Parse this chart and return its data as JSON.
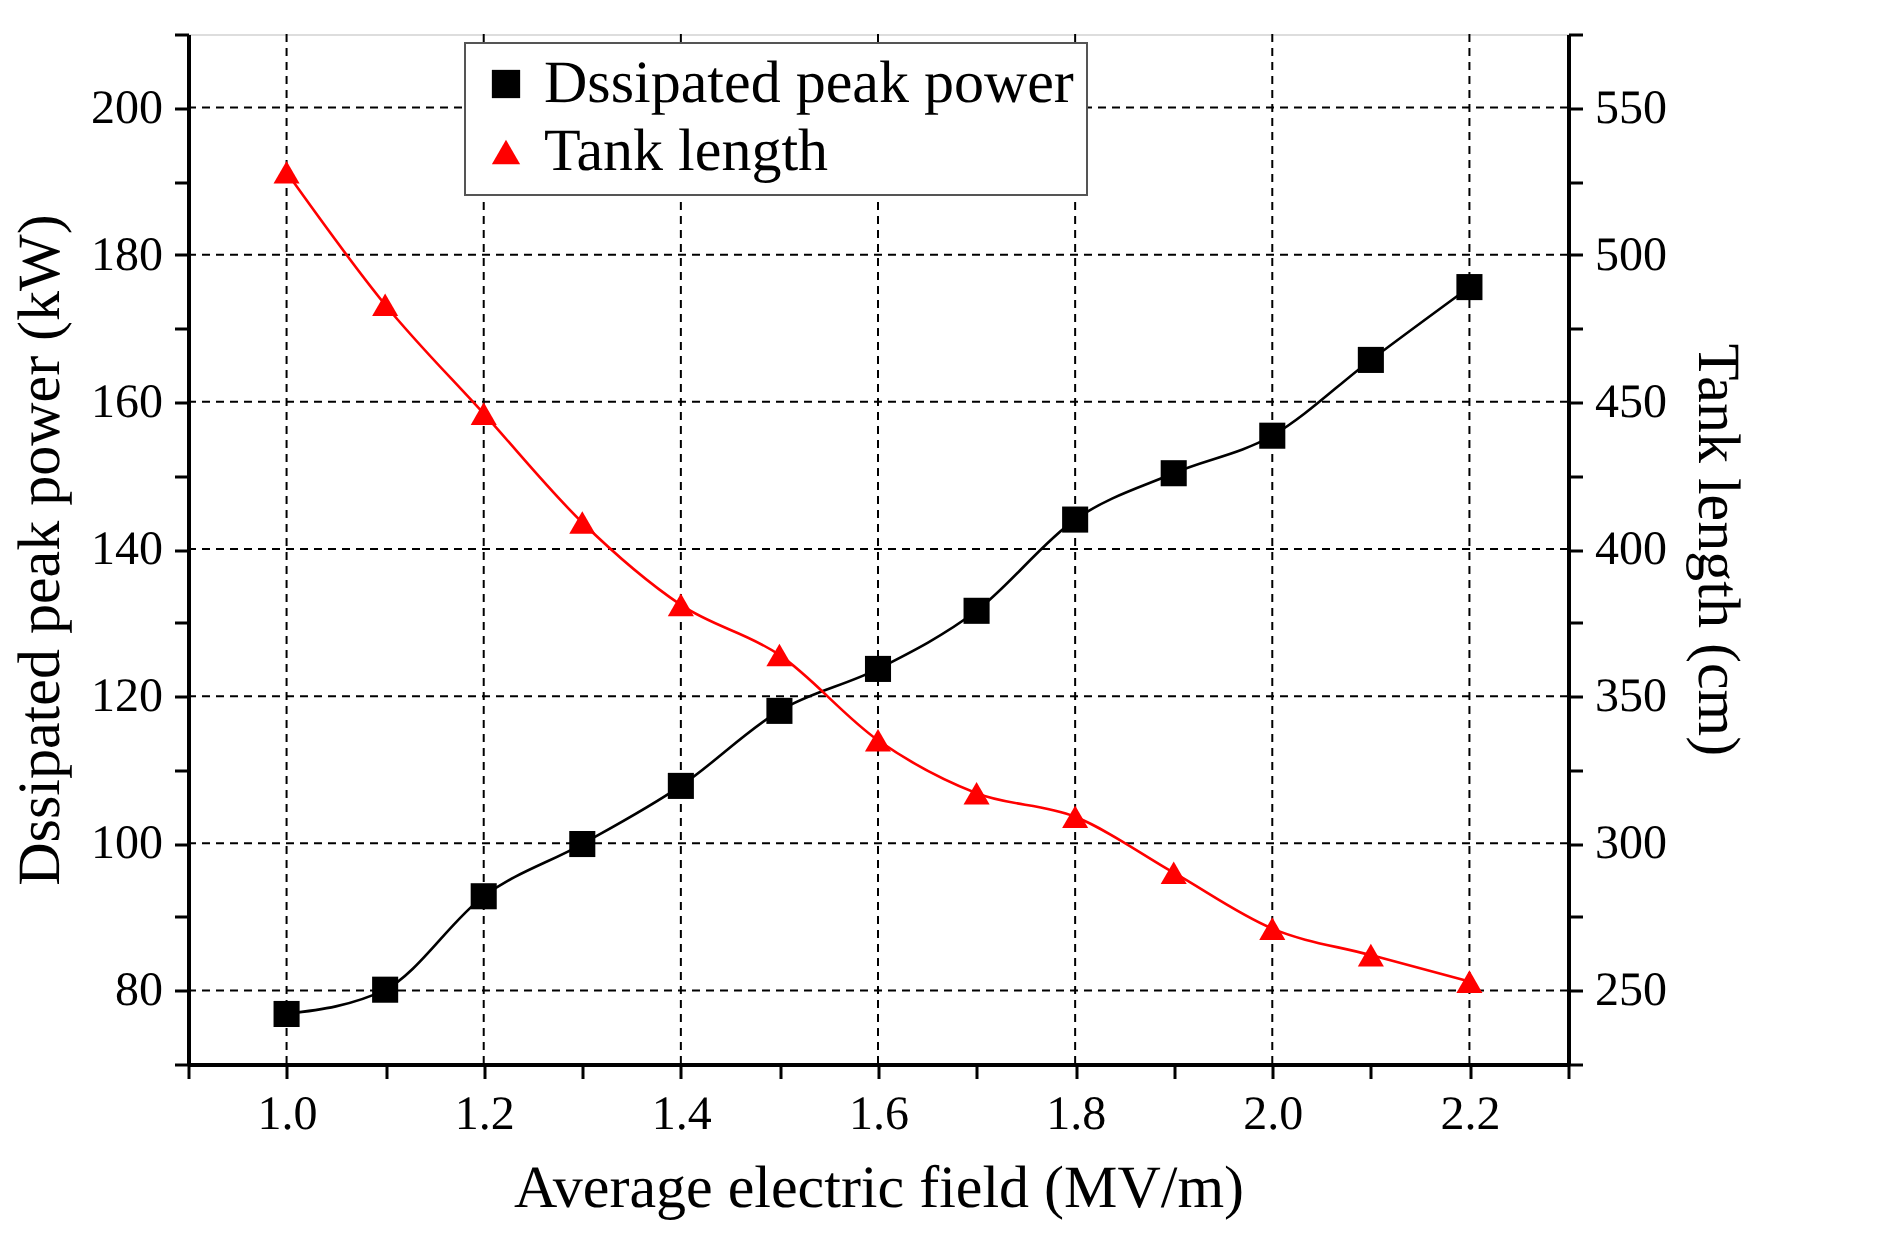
{
  "chart_data": {
    "type": "line",
    "xlabel": "Average electric field (MV/m)",
    "ylabel": "Dssipated peak power (kW)",
    "y2label": "Tank length (cm)",
    "x": [
      1.0,
      1.1,
      1.2,
      1.3,
      1.4,
      1.5,
      1.6,
      1.7,
      1.8,
      1.9,
      2.0,
      2.1,
      2.2
    ],
    "series": [
      {
        "name": "Dssipated peak power",
        "color": "#000000",
        "marker": "square",
        "values": [
          76.8,
          80.1,
          92.8,
          99.9,
          107.8,
          118.0,
          123.7,
          131.6,
          144.0,
          150.3,
          155.4,
          165.7,
          175.6
        ]
      },
      {
        "name": "Tank length",
        "color": "#ff0000",
        "marker": "triangle",
        "axis": "y2",
        "values": [
          528,
          483,
          446,
          409,
          381,
          364,
          335,
          317,
          309,
          290,
          271,
          262,
          253
        ]
      }
    ],
    "xlim": [
      0.9,
      2.3
    ],
    "xticks": [
      {
        "value": 0.9,
        "label": null
      },
      "1.0",
      {
        "value": 1.1,
        "label": null
      },
      {
        "value": 1.2,
        "label": "1.2"
      },
      {
        "value": 1.3,
        "label": null
      },
      {
        "value": 1.4,
        "label": "1.4"
      },
      {
        "value": 1.5,
        "label": null
      },
      {
        "value": 1.6,
        "label": "1.6"
      },
      {
        "value": 1.7,
        "label": null
      },
      {
        "value": 1.8,
        "label": "1.8"
      },
      {
        "value": 1.9,
        "label": null
      },
      {
        "value": 2.0,
        "label": "2.0"
      },
      {
        "value": 2.1,
        "label": null
      },
      {
        "value": 2.2,
        "label": "2.2"
      },
      {
        "value": 2.3,
        "label": null
      }
    ],
    "ylim": [
      70,
      210
    ],
    "yticks": [
      {
        "value": 70,
        "label": null
      },
      80,
      {
        "value": 90,
        "label": null
      },
      100,
      {
        "value": 110,
        "label": null
      },
      120,
      {
        "value": 130,
        "label": null
      },
      140,
      {
        "value": 150,
        "label": null
      },
      160,
      {
        "value": 170,
        "label": null
      },
      180,
      {
        "value": 190,
        "label": null
      },
      200,
      {
        "value": 210,
        "label": null
      }
    ],
    "y2lim": [
      225,
      575
    ],
    "y2ticks": [
      {
        "value": 225,
        "label": null
      },
      250,
      {
        "value": 275,
        "label": null
      },
      300,
      {
        "value": 325,
        "label": null
      },
      350,
      {
        "value": 375,
        "label": null
      },
      400,
      {
        "value": 425,
        "label": null
      },
      450,
      {
        "value": 475,
        "label": null
      },
      500,
      {
        "value": 525,
        "label": null
      },
      550,
      {
        "value": 575,
        "label": null
      }
    ],
    "grid": true,
    "legend": "top",
    "line_style": "solid"
  }
}
